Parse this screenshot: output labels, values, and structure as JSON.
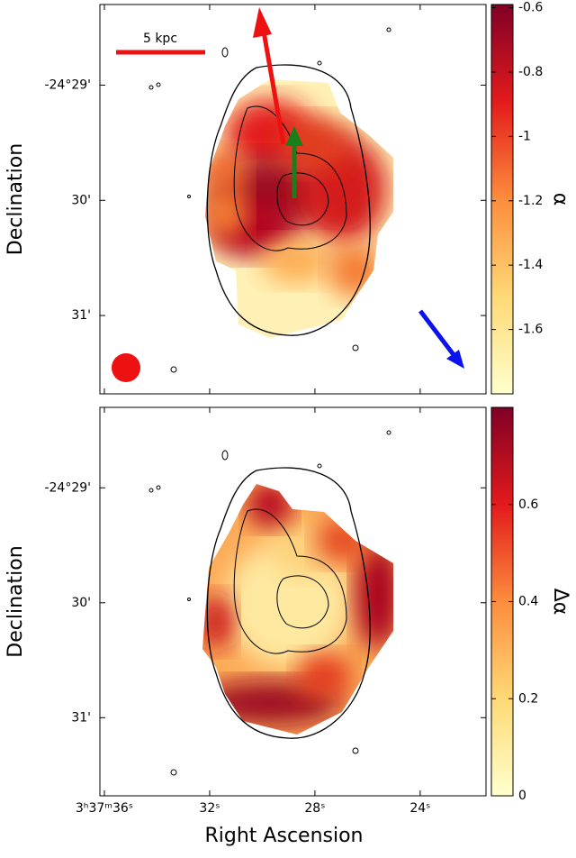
{
  "chart_data": [
    {
      "type": "image",
      "annotation": "5 kpc",
      "colorbar_label": "α",
      "ylim": [
        28.3,
        31.68
      ],
      "yticks": [
        {
          "value": 29,
          "label": "-24°29'"
        },
        {
          "value": 30,
          "label": "30'"
        },
        {
          "value": 31,
          "label": "31'"
        }
      ],
      "y_label": "Declination",
      "clim": [
        -1.8,
        -0.59
      ],
      "cticks": [
        -0.6,
        -0.8,
        -1.0,
        -1.2,
        -1.4,
        -1.6
      ]
    },
    {
      "type": "image",
      "colorbar_label": "Δα",
      "xlim": [
        36.17,
        21.5
      ],
      "xticks": [
        {
          "value": 36,
          "label": "3ʰ37ᵐ36ˢ"
        },
        {
          "value": 32,
          "label": "32ˢ"
        },
        {
          "value": 28,
          "label": "28ˢ"
        },
        {
          "value": 24,
          "label": "24ˢ"
        }
      ],
      "x_label": "Right Ascension",
      "ylim": [
        28.3,
        31.68
      ],
      "yticks": [
        {
          "value": 29,
          "label": "-24°29'"
        },
        {
          "value": 30,
          "label": "30'"
        },
        {
          "value": 31,
          "label": "31'"
        }
      ],
      "y_label": "Declination",
      "clim": [
        0,
        0.8
      ],
      "cticks": [
        0.0,
        0.2,
        0.4,
        0.6
      ]
    }
  ]
}
